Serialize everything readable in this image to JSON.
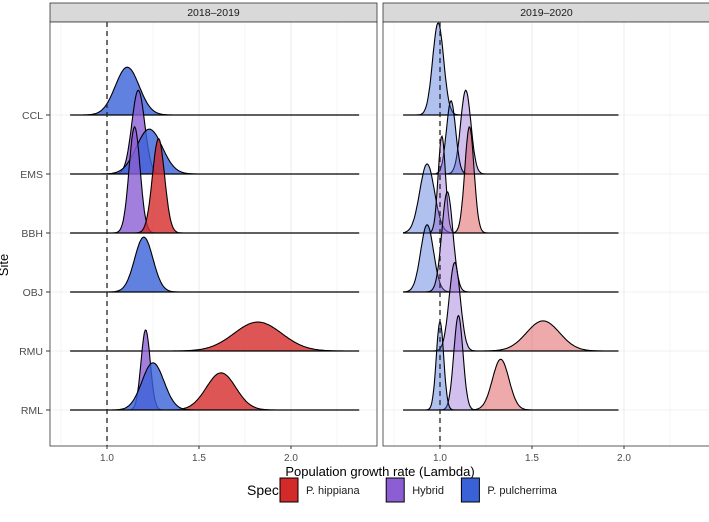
{
  "chart_data": {
    "type": "ridgeline-density",
    "xlabel": "Population growth rate (Lambda)",
    "ylabel": "Site",
    "xlim": [
      0.69,
      2.47
    ],
    "x_ticks": [
      "1.0",
      "1.5",
      "2.0"
    ],
    "x_tick_values": [
      1.0,
      1.5,
      2.0
    ],
    "reference_line": 1.0,
    "sites": [
      "RML",
      "RMU",
      "OBJ",
      "BBH",
      "EMS",
      "CCL"
    ],
    "legend": {
      "title": "Species",
      "position": "bottom",
      "entries": [
        {
          "name": "P. hippiana",
          "color": "#d42a2a"
        },
        {
          "name": "Hybrid",
          "color": "#8b5fd3"
        },
        {
          "name": "P. pulcherrima",
          "color": "#3a62d8"
        }
      ]
    },
    "panels": [
      {
        "title": "2018–2019",
        "range": [
          0.8,
          2.37
        ],
        "opacity": 0.8,
        "densities": [
          {
            "site": "CCL",
            "species": "P. pulcherrima",
            "mean": 1.11,
            "sd": 0.065,
            "peak": 0.81
          },
          {
            "site": "EMS",
            "species": "Hybrid",
            "mean": 1.17,
            "sd": 0.035,
            "peak": 1.42
          },
          {
            "site": "EMS",
            "species": "P. pulcherrima",
            "mean": 1.23,
            "sd": 0.07,
            "peak": 0.76
          },
          {
            "site": "BBH",
            "species": "Hybrid",
            "mean": 1.15,
            "sd": 0.03,
            "peak": 1.8
          },
          {
            "site": "BBH",
            "species": "P. hippiana",
            "mean": 1.28,
            "sd": 0.033,
            "peak": 1.6
          },
          {
            "site": "OBJ",
            "species": "P. pulcherrima",
            "mean": 1.2,
            "sd": 0.05,
            "peak": 0.93
          },
          {
            "site": "RMU",
            "species": "P. hippiana",
            "mean": 1.82,
            "sd": 0.13,
            "peak": 0.49
          },
          {
            "site": "RML",
            "species": "P. hippiana",
            "mean": 1.62,
            "sd": 0.08,
            "peak": 0.63
          },
          {
            "site": "RML",
            "species": "Hybrid",
            "mean": 1.21,
            "sd": 0.025,
            "peak": 1.36
          },
          {
            "site": "RML",
            "species": "P. pulcherrima",
            "mean": 1.25,
            "sd": 0.06,
            "peak": 0.8
          }
        ]
      },
      {
        "title": "2019–2020",
        "range": [
          0.8,
          1.97
        ],
        "opacity": 0.4,
        "densities": [
          {
            "site": "CCL",
            "species": "P. pulcherrima",
            "mean": 0.99,
            "sd": 0.03,
            "peak": 1.56
          },
          {
            "site": "EMS",
            "species": "Hybrid",
            "mean": 1.14,
            "sd": 0.028,
            "peak": 1.42
          },
          {
            "site": "EMS",
            "species": "P. pulcherrima",
            "mean": 1.06,
            "sd": 0.025,
            "peak": 1.24
          },
          {
            "site": "BBH",
            "species": "P. pulcherrima",
            "mean": 0.93,
            "sd": 0.04,
            "peak": 1.17
          },
          {
            "site": "BBH",
            "species": "Hybrid",
            "mean": 1.01,
            "sd": 0.02,
            "peak": 1.64
          },
          {
            "site": "BBH",
            "species": "P. hippiana",
            "mean": 1.16,
            "sd": 0.025,
            "peak": 1.8
          },
          {
            "site": "OBJ",
            "species": "P. pulcherrima",
            "mean": 0.93,
            "sd": 0.035,
            "peak": 1.14
          },
          {
            "site": "OBJ",
            "species": "Hybrid",
            "mean": 1.04,
            "sd": 0.03,
            "peak": 1.7
          },
          {
            "site": "RMU",
            "species": "Hybrid",
            "mean": 1.08,
            "sd": 0.03,
            "peak": 1.5
          },
          {
            "site": "RMU",
            "species": "P. hippiana",
            "mean": 1.56,
            "sd": 0.09,
            "peak": 0.51
          },
          {
            "site": "RML",
            "species": "P. hippiana",
            "mean": 1.33,
            "sd": 0.045,
            "peak": 0.86
          },
          {
            "site": "RML",
            "species": "Hybrid",
            "mean": 1.1,
            "sd": 0.025,
            "peak": 1.6
          },
          {
            "site": "RML",
            "species": "P. pulcherrima",
            "mean": 1.0,
            "sd": 0.02,
            "peak": 1.5
          }
        ]
      }
    ]
  }
}
